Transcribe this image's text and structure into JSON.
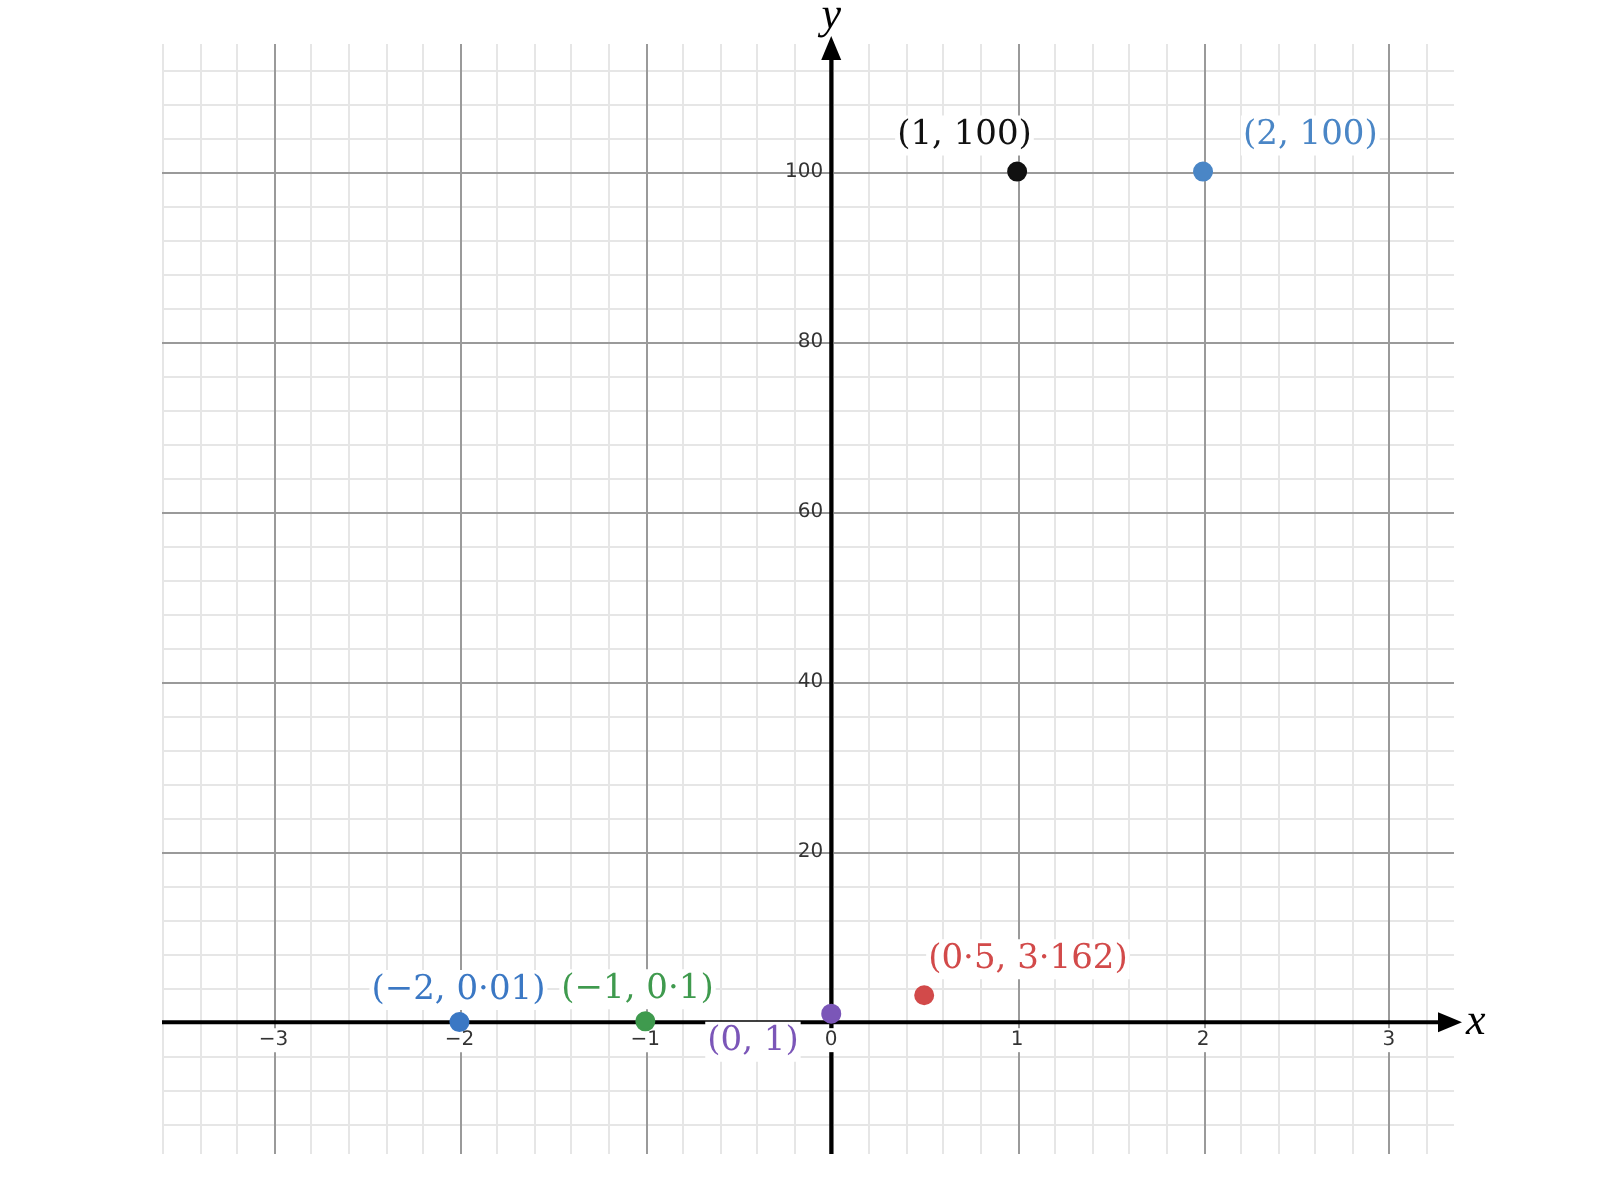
{
  "chart_data": {
    "type": "scatter",
    "xlabel": "x",
    "ylabel": "y",
    "xlim": [
      -3.6,
      3.35
    ],
    "ylim": [
      -15.5,
      115
    ],
    "xticks": [
      -3,
      -2,
      -1,
      0,
      1,
      2,
      3
    ],
    "yticks": [
      {
        "value": 0,
        "label": null
      },
      20,
      40,
      60,
      80,
      100
    ],
    "grid": true,
    "legend": false,
    "marker": "circle",
    "series": [
      {
        "name": "(−2, 0·01)",
        "color": "#3b78c4",
        "x": [
          -2
        ],
        "values": [
          0.01
        ]
      },
      {
        "name": "(−1, 0·1)",
        "color": "#3f9a4e",
        "x": [
          -1
        ],
        "values": [
          0.1
        ]
      },
      {
        "name": "(0, 1)",
        "color": "#7b56b8",
        "x": [
          0
        ],
        "values": [
          1
        ]
      },
      {
        "name": "(0·5, 3·162)",
        "color": "#d24a4a",
        "x": [
          0.5
        ],
        "values": [
          3.162
        ]
      },
      {
        "name": "(1, 100)",
        "color": "#111111",
        "x": [
          1
        ],
        "values": [
          100
        ]
      },
      {
        "name": "(2, 100)",
        "color": "#4a86c6",
        "x": [
          2
        ],
        "values": [
          100
        ]
      }
    ]
  }
}
